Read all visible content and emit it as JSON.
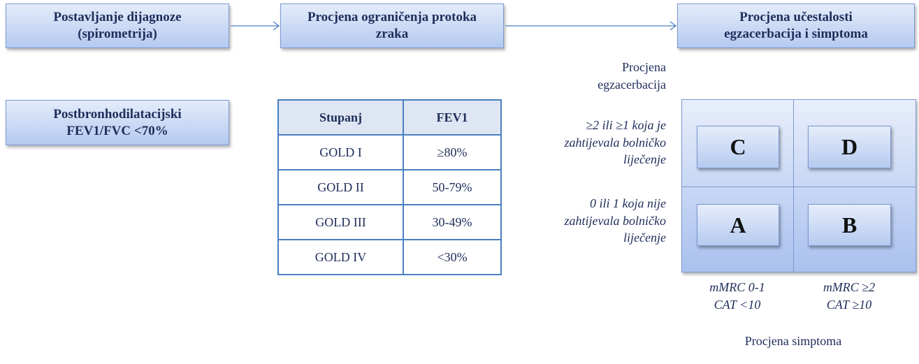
{
  "steps": [
    {
      "lines": [
        "Postavljanje dijagnoze",
        "(spirometrija)"
      ]
    },
    {
      "lines": [
        "Procjena ograničenja protoka",
        "zraka"
      ]
    },
    {
      "lines": [
        "Procjena učestalosti",
        "egzacerbacija i simptoma"
      ]
    }
  ],
  "criterion": {
    "lines": [
      "Postbronhodilatacijski",
      "FEV1/FVC <70%"
    ]
  },
  "table": {
    "header": [
      "Stupanj",
      "FEV1"
    ],
    "rows": [
      [
        "GOLD I",
        "≥80%"
      ],
      [
        "GOLD II",
        "50-79%"
      ],
      [
        "GOLD III",
        "30-49%"
      ],
      [
        "GOLD IV",
        "<30%"
      ]
    ]
  },
  "grid": {
    "y_title": [
      "Procjena",
      "egzacerbacija"
    ],
    "y_labels": [
      [
        "≥2 ili ≥1 koja je",
        "zahtijevala bolničko",
        "liječenje"
      ],
      [
        "0 ili 1 koja nije",
        "zahtijevala bolničko",
        "liječenje"
      ]
    ],
    "cells": [
      "C",
      "D",
      "A",
      "B"
    ],
    "x_labels": [
      [
        "mMRC 0-1",
        "CAT <10"
      ],
      [
        "mMRC ≥2",
        "CAT ≥10"
      ]
    ],
    "x_title": "Procjena simptoma"
  }
}
